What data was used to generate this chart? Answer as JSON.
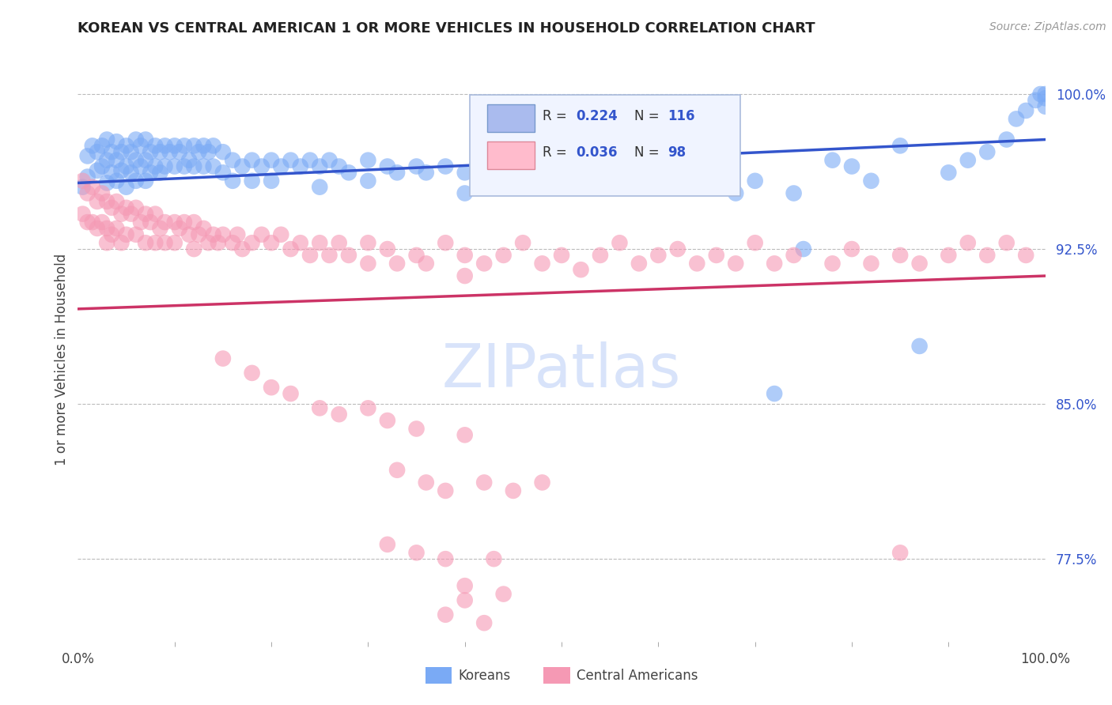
{
  "title": "KOREAN VS CENTRAL AMERICAN 1 OR MORE VEHICLES IN HOUSEHOLD CORRELATION CHART",
  "source": "Source: ZipAtlas.com",
  "ylabel": "1 or more Vehicles in Household",
  "xlim": [
    0.0,
    1.0
  ],
  "ylim": [
    0.735,
    1.008
  ],
  "yticks": [
    0.775,
    0.85,
    0.925,
    1.0
  ],
  "ytick_labels": [
    "77.5%",
    "85.0%",
    "92.5%",
    "100.0%"
  ],
  "blue_color": "#7aaaf5",
  "pink_color": "#f599b4",
  "line_blue": "#3355cc",
  "line_pink": "#cc3366",
  "legend_koreans": "Koreans",
  "legend_central": "Central Americans",
  "korean_points": [
    [
      0.005,
      0.955
    ],
    [
      0.01,
      0.97
    ],
    [
      0.01,
      0.96
    ],
    [
      0.015,
      0.975
    ],
    [
      0.02,
      0.972
    ],
    [
      0.02,
      0.963
    ],
    [
      0.025,
      0.975
    ],
    [
      0.025,
      0.965
    ],
    [
      0.03,
      0.978
    ],
    [
      0.03,
      0.968
    ],
    [
      0.03,
      0.957
    ],
    [
      0.035,
      0.972
    ],
    [
      0.035,
      0.962
    ],
    [
      0.04,
      0.977
    ],
    [
      0.04,
      0.968
    ],
    [
      0.04,
      0.958
    ],
    [
      0.045,
      0.972
    ],
    [
      0.045,
      0.963
    ],
    [
      0.05,
      0.975
    ],
    [
      0.05,
      0.965
    ],
    [
      0.05,
      0.955
    ],
    [
      0.055,
      0.972
    ],
    [
      0.055,
      0.962
    ],
    [
      0.06,
      0.978
    ],
    [
      0.06,
      0.968
    ],
    [
      0.06,
      0.958
    ],
    [
      0.065,
      0.975
    ],
    [
      0.065,
      0.965
    ],
    [
      0.07,
      0.978
    ],
    [
      0.07,
      0.968
    ],
    [
      0.07,
      0.958
    ],
    [
      0.075,
      0.972
    ],
    [
      0.075,
      0.962
    ],
    [
      0.08,
      0.975
    ],
    [
      0.08,
      0.965
    ],
    [
      0.085,
      0.972
    ],
    [
      0.085,
      0.962
    ],
    [
      0.09,
      0.975
    ],
    [
      0.09,
      0.965
    ],
    [
      0.095,
      0.972
    ],
    [
      0.1,
      0.975
    ],
    [
      0.1,
      0.965
    ],
    [
      0.105,
      0.972
    ],
    [
      0.11,
      0.975
    ],
    [
      0.11,
      0.965
    ],
    [
      0.115,
      0.968
    ],
    [
      0.12,
      0.975
    ],
    [
      0.12,
      0.965
    ],
    [
      0.125,
      0.972
    ],
    [
      0.13,
      0.975
    ],
    [
      0.13,
      0.965
    ],
    [
      0.135,
      0.972
    ],
    [
      0.14,
      0.975
    ],
    [
      0.14,
      0.965
    ],
    [
      0.15,
      0.972
    ],
    [
      0.15,
      0.962
    ],
    [
      0.16,
      0.968
    ],
    [
      0.16,
      0.958
    ],
    [
      0.17,
      0.965
    ],
    [
      0.18,
      0.968
    ],
    [
      0.18,
      0.958
    ],
    [
      0.19,
      0.965
    ],
    [
      0.2,
      0.968
    ],
    [
      0.2,
      0.958
    ],
    [
      0.21,
      0.965
    ],
    [
      0.22,
      0.968
    ],
    [
      0.23,
      0.965
    ],
    [
      0.24,
      0.968
    ],
    [
      0.25,
      0.965
    ],
    [
      0.25,
      0.955
    ],
    [
      0.26,
      0.968
    ],
    [
      0.27,
      0.965
    ],
    [
      0.28,
      0.962
    ],
    [
      0.3,
      0.968
    ],
    [
      0.3,
      0.958
    ],
    [
      0.32,
      0.965
    ],
    [
      0.33,
      0.962
    ],
    [
      0.35,
      0.965
    ],
    [
      0.36,
      0.962
    ],
    [
      0.38,
      0.965
    ],
    [
      0.4,
      0.962
    ],
    [
      0.4,
      0.952
    ],
    [
      0.42,
      0.965
    ],
    [
      0.44,
      0.962
    ],
    [
      0.46,
      0.965
    ],
    [
      0.48,
      0.958
    ],
    [
      0.5,
      0.965
    ],
    [
      0.52,
      0.962
    ],
    [
      0.54,
      0.958
    ],
    [
      0.56,
      0.965
    ],
    [
      0.58,
      0.962
    ],
    [
      0.6,
      0.958
    ],
    [
      0.62,
      0.955
    ],
    [
      0.64,
      0.962
    ],
    [
      0.66,
      0.958
    ],
    [
      0.68,
      0.952
    ],
    [
      0.7,
      0.958
    ],
    [
      0.72,
      0.855
    ],
    [
      0.74,
      0.952
    ],
    [
      0.75,
      0.925
    ],
    [
      0.78,
      0.968
    ],
    [
      0.8,
      0.965
    ],
    [
      0.82,
      0.958
    ],
    [
      0.85,
      0.975
    ],
    [
      0.87,
      0.878
    ],
    [
      0.9,
      0.962
    ],
    [
      0.92,
      0.968
    ],
    [
      0.94,
      0.972
    ],
    [
      0.96,
      0.978
    ],
    [
      0.97,
      0.988
    ],
    [
      0.98,
      0.992
    ],
    [
      0.99,
      0.997
    ],
    [
      1.0,
      1.0
    ],
    [
      1.0,
      0.998
    ],
    [
      1.0,
      0.994
    ],
    [
      0.995,
      1.0
    ]
  ],
  "central_points": [
    [
      0.005,
      0.958
    ],
    [
      0.005,
      0.942
    ],
    [
      0.01,
      0.952
    ],
    [
      0.01,
      0.938
    ],
    [
      0.015,
      0.955
    ],
    [
      0.015,
      0.938
    ],
    [
      0.02,
      0.948
    ],
    [
      0.02,
      0.935
    ],
    [
      0.025,
      0.952
    ],
    [
      0.025,
      0.938
    ],
    [
      0.03,
      0.948
    ],
    [
      0.03,
      0.935
    ],
    [
      0.03,
      0.928
    ],
    [
      0.035,
      0.945
    ],
    [
      0.035,
      0.932
    ],
    [
      0.04,
      0.948
    ],
    [
      0.04,
      0.935
    ],
    [
      0.045,
      0.942
    ],
    [
      0.045,
      0.928
    ],
    [
      0.05,
      0.945
    ],
    [
      0.05,
      0.932
    ],
    [
      0.055,
      0.942
    ],
    [
      0.06,
      0.945
    ],
    [
      0.06,
      0.932
    ],
    [
      0.065,
      0.938
    ],
    [
      0.07,
      0.942
    ],
    [
      0.07,
      0.928
    ],
    [
      0.075,
      0.938
    ],
    [
      0.08,
      0.942
    ],
    [
      0.08,
      0.928
    ],
    [
      0.085,
      0.935
    ],
    [
      0.09,
      0.938
    ],
    [
      0.09,
      0.928
    ],
    [
      0.1,
      0.938
    ],
    [
      0.1,
      0.928
    ],
    [
      0.105,
      0.935
    ],
    [
      0.11,
      0.938
    ],
    [
      0.115,
      0.932
    ],
    [
      0.12,
      0.938
    ],
    [
      0.12,
      0.925
    ],
    [
      0.125,
      0.932
    ],
    [
      0.13,
      0.935
    ],
    [
      0.135,
      0.928
    ],
    [
      0.14,
      0.932
    ],
    [
      0.145,
      0.928
    ],
    [
      0.15,
      0.932
    ],
    [
      0.16,
      0.928
    ],
    [
      0.165,
      0.932
    ],
    [
      0.17,
      0.925
    ],
    [
      0.18,
      0.928
    ],
    [
      0.19,
      0.932
    ],
    [
      0.2,
      0.928
    ],
    [
      0.21,
      0.932
    ],
    [
      0.22,
      0.925
    ],
    [
      0.23,
      0.928
    ],
    [
      0.24,
      0.922
    ],
    [
      0.25,
      0.928
    ],
    [
      0.26,
      0.922
    ],
    [
      0.27,
      0.928
    ],
    [
      0.28,
      0.922
    ],
    [
      0.3,
      0.928
    ],
    [
      0.3,
      0.918
    ],
    [
      0.32,
      0.925
    ],
    [
      0.33,
      0.918
    ],
    [
      0.35,
      0.922
    ],
    [
      0.36,
      0.918
    ],
    [
      0.38,
      0.928
    ],
    [
      0.4,
      0.922
    ],
    [
      0.4,
      0.912
    ],
    [
      0.42,
      0.918
    ],
    [
      0.44,
      0.922
    ],
    [
      0.46,
      0.928
    ],
    [
      0.48,
      0.918
    ],
    [
      0.5,
      0.922
    ],
    [
      0.52,
      0.915
    ],
    [
      0.54,
      0.922
    ],
    [
      0.56,
      0.928
    ],
    [
      0.58,
      0.918
    ],
    [
      0.6,
      0.922
    ],
    [
      0.62,
      0.925
    ],
    [
      0.64,
      0.918
    ],
    [
      0.66,
      0.922
    ],
    [
      0.68,
      0.918
    ],
    [
      0.7,
      0.928
    ],
    [
      0.72,
      0.918
    ],
    [
      0.74,
      0.922
    ],
    [
      0.78,
      0.918
    ],
    [
      0.8,
      0.925
    ],
    [
      0.82,
      0.918
    ],
    [
      0.85,
      0.922
    ],
    [
      0.87,
      0.918
    ],
    [
      0.9,
      0.922
    ],
    [
      0.92,
      0.928
    ],
    [
      0.94,
      0.922
    ],
    [
      0.96,
      0.928
    ],
    [
      0.98,
      0.922
    ],
    [
      0.15,
      0.872
    ],
    [
      0.18,
      0.865
    ],
    [
      0.2,
      0.858
    ],
    [
      0.22,
      0.855
    ],
    [
      0.25,
      0.848
    ],
    [
      0.27,
      0.845
    ],
    [
      0.3,
      0.848
    ],
    [
      0.32,
      0.842
    ],
    [
      0.35,
      0.838
    ],
    [
      0.4,
      0.835
    ],
    [
      0.33,
      0.818
    ],
    [
      0.36,
      0.812
    ],
    [
      0.38,
      0.808
    ],
    [
      0.42,
      0.812
    ],
    [
      0.45,
      0.808
    ],
    [
      0.48,
      0.812
    ],
    [
      0.32,
      0.782
    ],
    [
      0.35,
      0.778
    ],
    [
      0.38,
      0.775
    ],
    [
      0.43,
      0.775
    ],
    [
      0.4,
      0.762
    ],
    [
      0.44,
      0.758
    ],
    [
      0.38,
      0.748
    ],
    [
      0.42,
      0.744
    ],
    [
      0.4,
      0.755
    ],
    [
      0.85,
      0.778
    ]
  ]
}
